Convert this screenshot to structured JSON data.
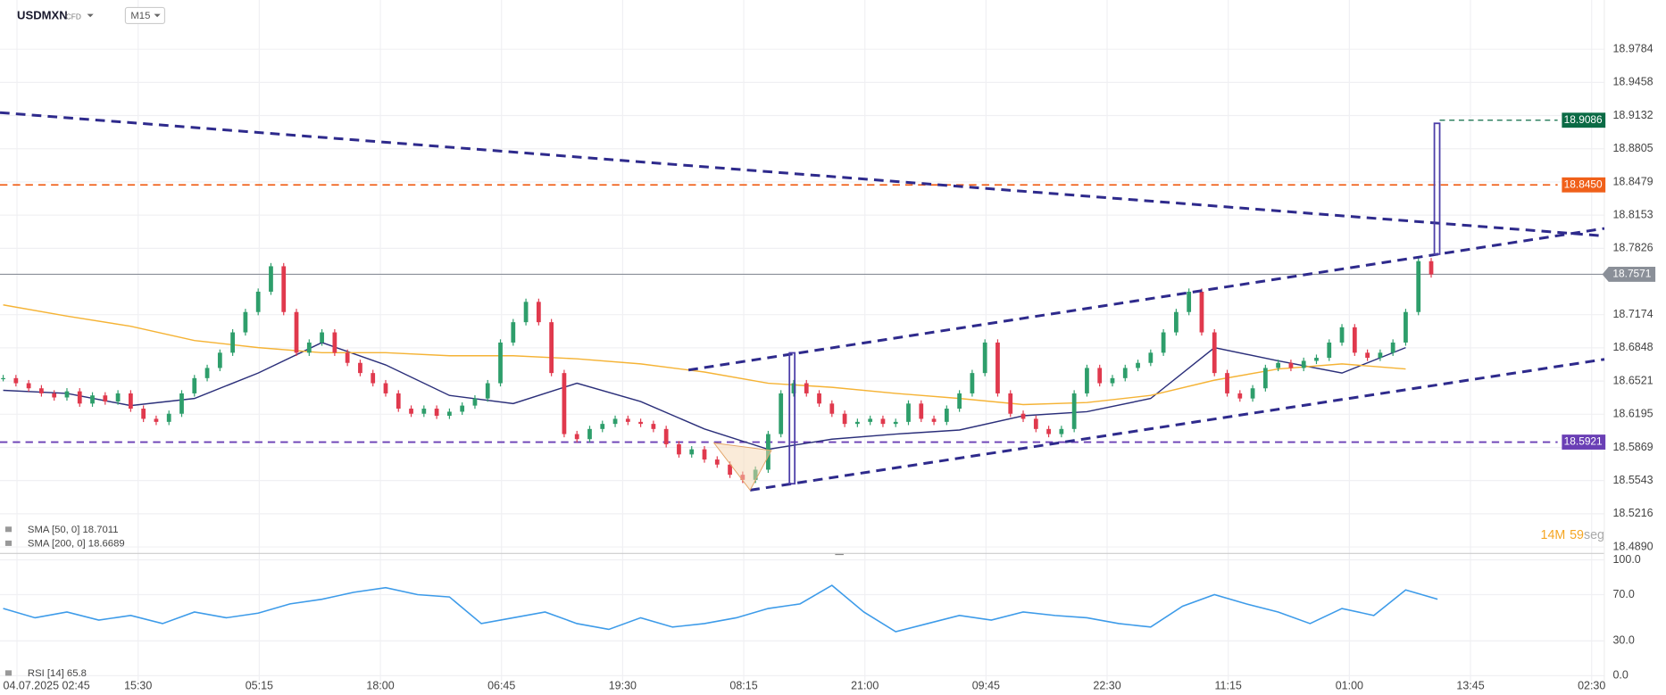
{
  "header": {
    "symbol": "USDMXN",
    "instrument": "CFD",
    "timeframe": "M15"
  },
  "chart_data": [
    {
      "type": "candlestick",
      "up_color": "#2e9e6b",
      "down_color": "#e0394d",
      "closes": [
        18.655,
        18.65,
        18.645,
        18.64,
        18.636,
        18.642,
        18.63,
        18.638,
        18.632,
        18.64,
        18.625,
        18.615,
        18.612,
        18.62,
        18.64,
        18.655,
        18.665,
        18.68,
        18.7,
        18.72,
        18.74,
        18.765,
        18.72,
        18.68,
        18.69,
        18.7,
        18.68,
        18.67,
        18.66,
        18.65,
        18.64,
        18.625,
        18.62,
        18.625,
        18.618,
        18.622,
        18.628,
        18.635,
        18.65,
        18.69,
        18.71,
        18.73,
        18.71,
        18.66,
        18.6,
        18.595,
        18.605,
        18.61,
        18.615,
        18.612,
        18.61,
        18.605,
        18.59,
        18.58,
        18.585,
        18.575,
        18.57,
        18.56,
        18.555,
        18.565,
        18.6,
        18.64,
        18.65,
        18.64,
        18.63,
        18.62,
        18.61,
        18.612,
        18.615,
        18.61,
        18.612,
        18.63,
        18.615,
        18.612,
        18.625,
        18.64,
        18.66,
        18.69,
        18.64,
        18.62,
        18.615,
        18.605,
        18.6,
        18.605,
        18.64,
        18.665,
        18.65,
        18.655,
        18.665,
        18.67,
        18.68,
        18.7,
        18.72,
        18.74,
        18.7,
        18.66,
        18.64,
        18.635,
        18.645,
        18.665,
        18.67,
        18.665,
        18.672,
        18.675,
        18.69,
        18.705,
        18.68,
        18.675,
        18.68,
        18.69,
        18.72,
        18.77,
        18.757
      ],
      "series": [
        {
          "name": "SMA [50, 0] 18.7011",
          "color": "#2b2f7a",
          "values": [
            18.643,
            18.64,
            18.628,
            18.635,
            18.66,
            18.69,
            18.668,
            18.638,
            18.63,
            18.65,
            18.632,
            18.605,
            18.585,
            18.595,
            18.6,
            18.604,
            18.618,
            18.622,
            18.635,
            18.685,
            18.672,
            18.66,
            18.685
          ]
        },
        {
          "name": "SMA [200, 0] 18.6689",
          "color": "#f5b335",
          "values": [
            18.727,
            18.716,
            18.706,
            18.692,
            18.685,
            18.68,
            18.68,
            18.677,
            18.677,
            18.674,
            18.669,
            18.661,
            18.65,
            18.646,
            18.64,
            18.635,
            18.629,
            18.631,
            18.638,
            18.653,
            18.664,
            18.669,
            18.664
          ]
        }
      ],
      "ylim": [
        18.4837,
        19.0268
      ],
      "yticks": [
        18.9784,
        18.9458,
        18.9132,
        18.8805,
        18.8479,
        18.8153,
        18.7826,
        18.7174,
        18.6848,
        18.6521,
        18.6195,
        18.5869,
        18.5543,
        18.5216,
        {
          "value": 18.489,
          "label": "18.4890"
        }
      ],
      "x_labels": [
        "04.07.2025 02:45",
        "15:30",
        "05:15",
        "18:00",
        "06:45",
        "19:30",
        "08:15",
        "21:00",
        "09:45",
        "22:30",
        "11:15",
        "01:00",
        "13:45",
        "02:30"
      ],
      "levels": [
        {
          "value": 18.9086,
          "color": "#0b6b45"
        },
        {
          "value": 18.845,
          "label": "18.8450",
          "color": "#f0601a"
        },
        {
          "value": 18.7571,
          "color": "#8a8f98"
        },
        {
          "value": 18.5921,
          "color": "#6a3fb5"
        }
      ],
      "countdown": {
        "minutes": 14,
        "minutes_unit": "M",
        "seconds": 59,
        "seconds_unit": "seg"
      },
      "grid": true
    },
    {
      "type": "line",
      "series": [
        {
          "name": "RSI [14] 65.8",
          "color": "#3d9be9",
          "values": [
            58,
            50,
            55,
            48,
            52,
            45,
            55,
            50,
            54,
            62,
            66,
            72,
            76,
            70,
            68,
            45,
            50,
            55,
            45,
            40,
            50,
            42,
            45,
            50,
            58,
            62,
            78,
            55,
            38,
            45,
            52,
            48,
            55,
            52,
            50,
            45,
            42,
            60,
            70,
            62,
            55,
            45,
            58,
            52,
            74,
            66
          ]
        }
      ],
      "ylim": [
        0,
        100
      ],
      "yticks": [
        {
          "value": 100,
          "label": "100.0"
        },
        {
          "value": 70,
          "label": "70.0"
        },
        {
          "value": 30,
          "label": "30.0"
        },
        {
          "value": 0,
          "label": "0.0"
        }
      ]
    }
  ]
}
